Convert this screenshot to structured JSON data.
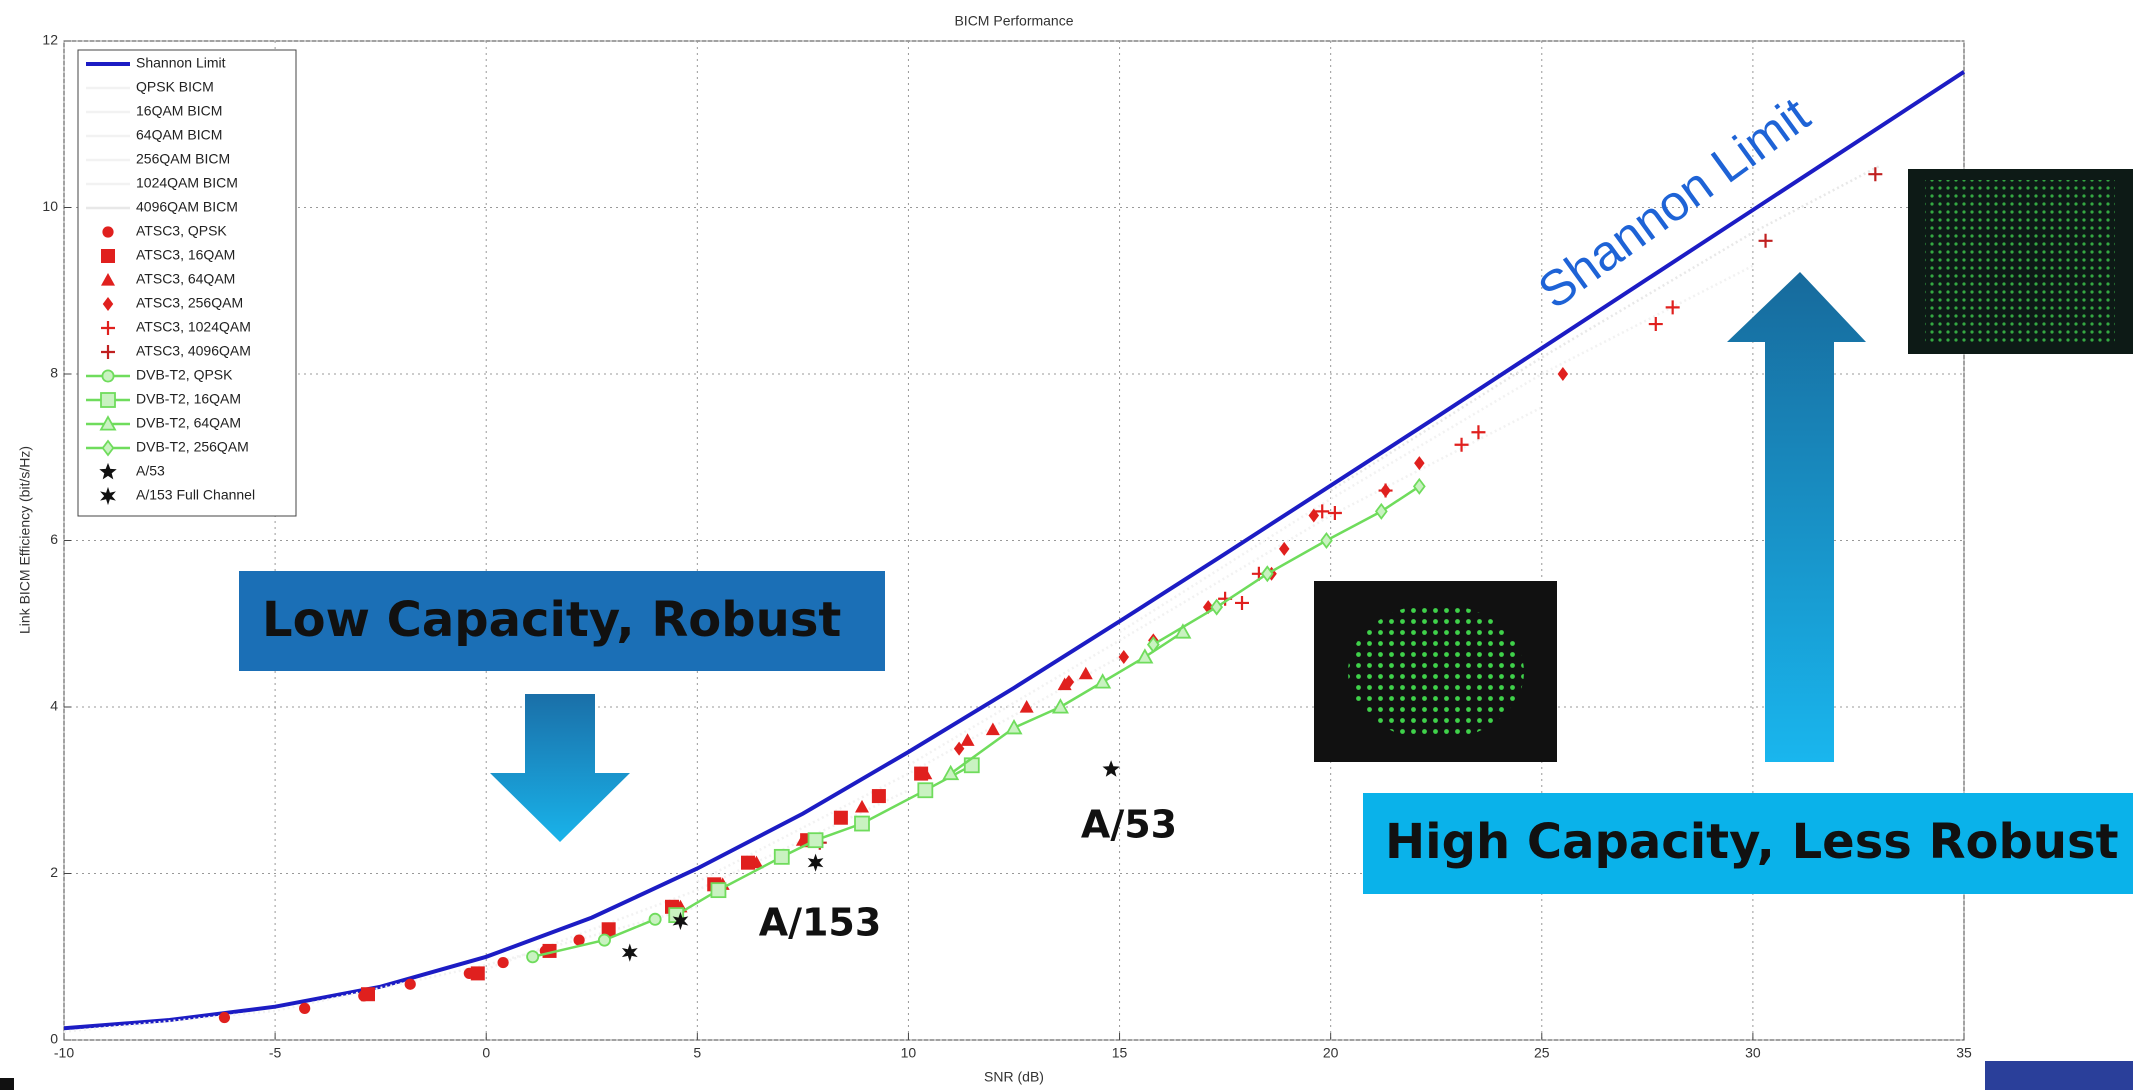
{
  "chart_data": {
    "type": "scatter",
    "title": "BICM Performance",
    "x_label": "SNR (dB)",
    "y_label": "Link BICM Efficiency (bit/s/Hz)",
    "xlim": [
      -10,
      35
    ],
    "ylim": [
      0,
      12
    ],
    "xticks": [
      -10,
      -5,
      0,
      5,
      10,
      15,
      20,
      25,
      30,
      35
    ],
    "yticks": [
      0,
      2,
      4,
      6,
      8,
      10,
      12
    ],
    "grid": true,
    "legend": "upper left",
    "series": [
      {
        "name": "Shannon Limit",
        "color": "#1c1cc4",
        "marker": "none",
        "line": true,
        "x": [
          -10,
          -7.5,
          -5,
          -2.5,
          0,
          2.5,
          5,
          7.5,
          10,
          12.5,
          15,
          17.5,
          20,
          22.5,
          25,
          27.5,
          30,
          32.5,
          35
        ],
        "values": [
          0.14,
          0.24,
          0.4,
          0.64,
          1.0,
          1.47,
          2.06,
          2.72,
          3.46,
          4.23,
          5.03,
          5.84,
          6.66,
          7.48,
          8.31,
          9.14,
          9.97,
          10.8,
          11.63
        ]
      },
      {
        "name": "QPSK BICM",
        "color": "#f2f2f2",
        "marker": "none",
        "line": true,
        "x": [
          -10,
          -5,
          0,
          5
        ],
        "values": [
          0.1,
          0.35,
          0.9,
          1.6
        ]
      },
      {
        "name": "16QAM BICM",
        "color": "#f2f2f2",
        "marker": "none",
        "line": true,
        "x": [
          0,
          5,
          10
        ],
        "values": [
          0.85,
          1.8,
          3.0
        ]
      },
      {
        "name": "64QAM BICM",
        "color": "#f2f2f2",
        "marker": "none",
        "line": true,
        "x": [
          5,
          10,
          15
        ],
        "values": [
          1.9,
          3.2,
          4.6
        ]
      },
      {
        "name": "256QAM BICM",
        "color": "#f2f2f2",
        "marker": "none",
        "line": true,
        "x": [
          10,
          15,
          20,
          25
        ],
        "values": [
          3.3,
          4.8,
          6.3,
          7.6
        ]
      },
      {
        "name": "1024QAM BICM",
        "color": "#f2f2f2",
        "marker": "none",
        "line": true,
        "x": [
          15,
          20,
          25,
          30
        ],
        "values": [
          4.9,
          6.5,
          8.0,
          9.3
        ]
      },
      {
        "name": "4096QAM BICM",
        "color": "#e8e8e8",
        "marker": "none",
        "line": true,
        "x": [
          20,
          25,
          30,
          33
        ],
        "values": [
          6.6,
          8.2,
          9.7,
          10.5
        ]
      },
      {
        "name": "ATSC3, QPSK",
        "color": "#e0201e",
        "marker": "circle",
        "line": false,
        "x": [
          -6.2,
          -4.3,
          -2.9,
          -1.8,
          -0.4,
          0.4,
          1.4,
          2.2,
          2.9
        ],
        "values": [
          0.27,
          0.38,
          0.53,
          0.67,
          0.8,
          0.93,
          1.07,
          1.2,
          1.3
        ]
      },
      {
        "name": "ATSC3, 16QAM",
        "color": "#e0201e",
        "marker": "square",
        "line": false,
        "x": [
          -2.8,
          -0.2,
          1.5,
          2.9,
          4.4,
          5.4,
          6.2,
          7.6,
          8.4,
          9.3,
          10.3
        ],
        "values": [
          0.55,
          0.8,
          1.07,
          1.33,
          1.6,
          1.87,
          2.13,
          2.4,
          2.67,
          2.93,
          3.2
        ]
      },
      {
        "name": "ATSC3, 64QAM",
        "color": "#e0201e",
        "marker": "triangle",
        "line": false,
        "x": [
          4.6,
          5.6,
          6.4,
          7.5,
          8.9,
          10.4,
          11.4,
          12,
          12.8,
          13.7,
          14.2
        ],
        "values": [
          1.6,
          1.87,
          2.13,
          2.4,
          2.8,
          3.2,
          3.6,
          3.73,
          4.0,
          4.27,
          4.4
        ]
      },
      {
        "name": "ATSC3, 256QAM",
        "color": "#e0201e",
        "marker": "diamond",
        "line": false,
        "x": [
          11.2,
          13.8,
          15.1,
          15.8,
          17.1,
          18.6,
          18.9,
          19.6,
          21.3,
          22.1,
          25.5
        ],
        "values": [
          3.5,
          4.3,
          4.6,
          4.8,
          5.2,
          5.6,
          5.9,
          6.3,
          6.6,
          6.93,
          8.0
        ]
      },
      {
        "name": "ATSC3, 1024QAM",
        "color": "#e0201e",
        "marker": "plus",
        "line": false,
        "x": [
          17.5,
          17.9,
          18.3,
          19.8,
          20.1,
          21.3,
          23.1,
          23.5,
          27.7,
          28.1
        ],
        "values": [
          5.3,
          5.25,
          5.6,
          6.35,
          6.33,
          6.6,
          7.15,
          7.3,
          8.6,
          8.8
        ]
      },
      {
        "name": "ATSC3, 4096QAM",
        "color": "#c02020",
        "marker": "plus",
        "line": false,
        "x": [
          7.9,
          30.3,
          32.9
        ],
        "values": [
          2.37,
          9.6,
          10.4
        ]
      },
      {
        "name": "DVB-T2, QPSK",
        "color": "#6fdc5c",
        "marker": "circle",
        "line": true,
        "x": [
          1.1,
          2.8,
          4.0
        ],
        "values": [
          1.0,
          1.2,
          1.45
        ]
      },
      {
        "name": "DVB-T2, 16QAM",
        "color": "#6fdc5c",
        "marker": "square",
        "line": true,
        "x": [
          4.5,
          5.5,
          7.0,
          7.8,
          8.9,
          10.4,
          11.5
        ],
        "values": [
          1.5,
          1.8,
          2.2,
          2.4,
          2.6,
          3.0,
          3.3
        ]
      },
      {
        "name": "DVB-T2, 64QAM",
        "color": "#6fdc5c",
        "marker": "triangle",
        "line": true,
        "x": [
          11.0,
          12.5,
          13.6,
          14.6,
          15.6,
          16.5
        ],
        "values": [
          3.2,
          3.75,
          4.0,
          4.3,
          4.6,
          4.9
        ]
      },
      {
        "name": "DVB-T2, 256QAM",
        "color": "#6fdc5c",
        "marker": "diamond",
        "line": true,
        "x": [
          15.8,
          17.3,
          18.5,
          19.9,
          21.2,
          22.1
        ],
        "values": [
          4.75,
          5.2,
          5.6,
          6.0,
          6.35,
          6.65
        ]
      },
      {
        "name": "A/53",
        "color": "#111111",
        "marker": "star",
        "line": false,
        "x": [
          14.8
        ],
        "values": [
          3.25
        ]
      },
      {
        "name": "A/153 Full Channel",
        "color": "#111111",
        "marker": "hexstar",
        "line": false,
        "x": [
          3.4,
          4.6,
          7.8
        ],
        "values": [
          1.05,
          1.43,
          2.13
        ]
      }
    ],
    "annotations": [
      "Low Capacity, Robust",
      "High Capacity, Less Robust",
      "Shannon Limit",
      "A/53",
      "A/153"
    ]
  }
}
